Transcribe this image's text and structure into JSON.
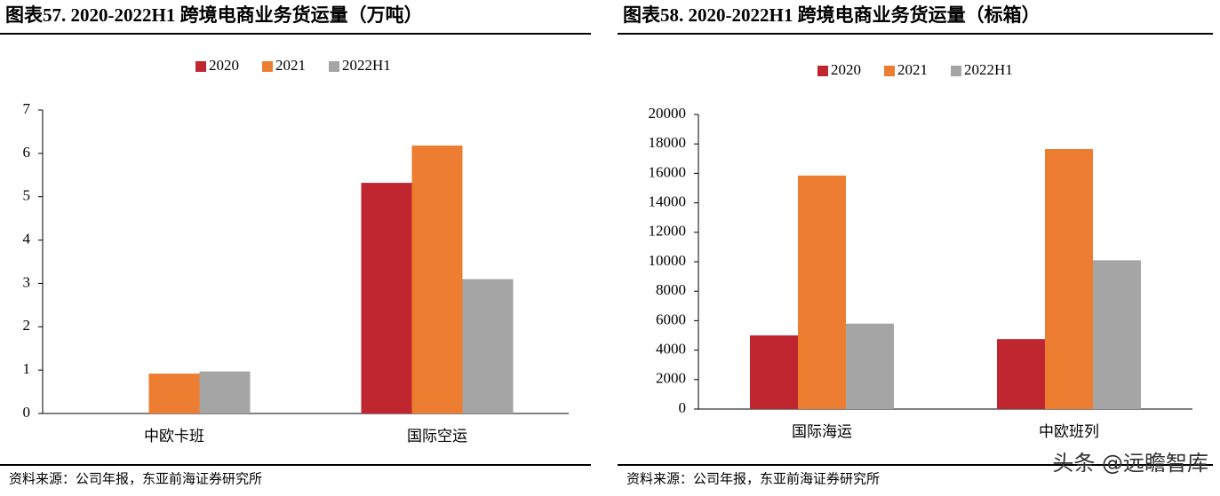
{
  "chart_data": [
    {
      "type": "bar",
      "title": "图表57. 2020-2022H1 跨境电商业务货运量（万吨）",
      "categories": [
        "中欧卡班",
        "国际空运"
      ],
      "series": [
        {
          "name": "2020",
          "color": "#c0262f",
          "values": [
            0,
            5.32
          ]
        },
        {
          "name": "2021",
          "color": "#ed7d31",
          "values": [
            0.92,
            6.18
          ]
        },
        {
          "name": "2022H1",
          "color": "#a5a5a5",
          "values": [
            0.97,
            3.1
          ]
        }
      ],
      "ylim": [
        0,
        7
      ],
      "yticks": [
        0,
        1,
        2,
        3,
        4,
        5,
        6,
        7
      ],
      "legend": "top",
      "source": "资料来源：公司年报，东亚前海证券研究所"
    },
    {
      "type": "bar",
      "title": "图表58. 2020-2022H1 跨境电商业务货运量（标箱）",
      "categories": [
        "国际海运",
        "中欧班列"
      ],
      "series": [
        {
          "name": "2020",
          "color": "#c0262f",
          "values": [
            5000,
            4750
          ]
        },
        {
          "name": "2021",
          "color": "#ed7d31",
          "values": [
            15850,
            17650
          ]
        },
        {
          "name": "2022H1",
          "color": "#a5a5a5",
          "values": [
            5800,
            10100
          ]
        }
      ],
      "ylim": [
        0,
        20000
      ],
      "yticks": [
        0,
        2000,
        4000,
        6000,
        8000,
        10000,
        12000,
        14000,
        16000,
        18000,
        20000
      ],
      "legend": "top",
      "source": "资料来源：公司年报，东亚前海证券研究所",
      "watermark": "头条 @远瞻智库"
    }
  ]
}
